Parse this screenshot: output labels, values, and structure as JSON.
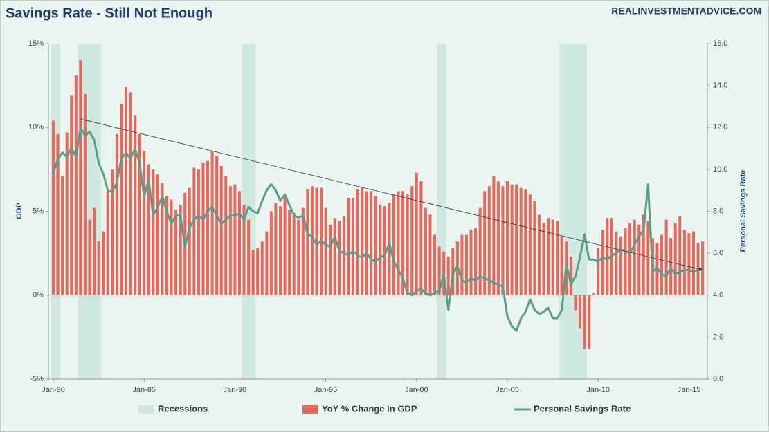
{
  "chart_data": {
    "type": "combo",
    "title": "Savings Rate - Still Not Enough",
    "source": "REALINVESTMENTADVICE.COM",
    "ylabel": "GDP",
    "y2label": "Personal Savings Rate",
    "categories": [
      "Jan-80",
      null,
      null,
      null,
      null,
      null,
      null,
      null,
      null,
      null,
      null,
      null,
      null,
      null,
      null,
      null,
      null,
      null,
      null,
      null,
      "Jan-85",
      null,
      null,
      null,
      null,
      null,
      null,
      null,
      null,
      null,
      null,
      null,
      null,
      null,
      null,
      null,
      null,
      null,
      null,
      null,
      "Jan-90",
      null,
      null,
      null,
      null,
      null,
      null,
      null,
      null,
      null,
      null,
      null,
      null,
      null,
      null,
      null,
      null,
      null,
      null,
      null,
      "Jan-95",
      null,
      null,
      null,
      null,
      null,
      null,
      null,
      null,
      null,
      null,
      null,
      null,
      null,
      null,
      null,
      null,
      null,
      null,
      null,
      "Jan-00",
      null,
      null,
      null,
      null,
      null,
      null,
      null,
      null,
      null,
      null,
      null,
      null,
      null,
      null,
      null,
      null,
      null,
      null,
      null,
      "Jan-05",
      null,
      null,
      null,
      null,
      null,
      null,
      null,
      null,
      null,
      null,
      null,
      null,
      null,
      null,
      null,
      null,
      null,
      null,
      null,
      "Jan-10",
      null,
      null,
      null,
      null,
      null,
      null,
      null,
      null,
      null,
      null,
      null,
      null,
      null,
      null,
      null,
      null,
      null,
      null,
      null,
      "Jan-15",
      null,
      null,
      null
    ],
    "series": [
      {
        "name": "Recessions",
        "type": "shade",
        "color": "#cfe9e1",
        "values": [
          1,
          1,
          0,
          0,
          0,
          0,
          1,
          1,
          1,
          1,
          1,
          0,
          0,
          0,
          0,
          0,
          0,
          0,
          0,
          0,
          0,
          0,
          0,
          0,
          0,
          0,
          0,
          0,
          0,
          0,
          0,
          0,
          0,
          0,
          0,
          0,
          0,
          0,
          0,
          0,
          0,
          0,
          1,
          1,
          1,
          0,
          0,
          0,
          0,
          0,
          0,
          0,
          0,
          0,
          0,
          0,
          0,
          0,
          0,
          0,
          0,
          0,
          0,
          0,
          0,
          0,
          0,
          0,
          0,
          0,
          0,
          0,
          0,
          0,
          0,
          0,
          0,
          0,
          0,
          0,
          0,
          0,
          0,
          0,
          0,
          1,
          1,
          0,
          0,
          0,
          0,
          0,
          0,
          0,
          0,
          0,
          0,
          0,
          0,
          0,
          0,
          0,
          0,
          0,
          0,
          0,
          0,
          0,
          0,
          0,
          0,
          0,
          1,
          1,
          1,
          1,
          1,
          1,
          0,
          0,
          0,
          0,
          0,
          0,
          0,
          0,
          0,
          0,
          0,
          0,
          0,
          0,
          0,
          0,
          0,
          0,
          0,
          0,
          0,
          0,
          0,
          0,
          0,
          0
        ]
      },
      {
        "name": "YoY % Change In GDP",
        "type": "bar",
        "axis": "y",
        "color": "#e8675a",
        "values": [
          10.4,
          9.6,
          7.1,
          9.7,
          11.9,
          13.1,
          14.0,
          12.0,
          4.5,
          5.2,
          3.2,
          3.8,
          6.2,
          7.5,
          9.6,
          11.4,
          12.4,
          12.1,
          10.7,
          9.6,
          8.6,
          7.8,
          7.5,
          7.2,
          6.7,
          5.9,
          5.7,
          5.1,
          5.4,
          6.1,
          6.4,
          7.6,
          7.5,
          7.9,
          8.0,
          8.6,
          8.3,
          7.7,
          7.1,
          6.5,
          6.6,
          6.2,
          5.4,
          4.5,
          2.7,
          2.8,
          3.2,
          3.8,
          5.0,
          5.5,
          5.3,
          6.0,
          5.1,
          4.9,
          4.5,
          5.2,
          6.3,
          6.5,
          6.4,
          6.4,
          5.2,
          4.2,
          4.6,
          4.4,
          4.7,
          5.8,
          5.8,
          6.3,
          6.4,
          6.2,
          6.2,
          5.9,
          5.4,
          5.3,
          5.5,
          6.0,
          6.2,
          6.2,
          6.0,
          6.5,
          7.3,
          6.8,
          5.2,
          4.8,
          3.6,
          2.9,
          2.6,
          2.3,
          2.8,
          3.2,
          3.6,
          3.6,
          3.9,
          4.0,
          5.2,
          6.2,
          6.5,
          7.1,
          6.8,
          6.5,
          6.8,
          6.6,
          6.6,
          6.4,
          6.3,
          6.0,
          5.6,
          4.8,
          4.3,
          4.6,
          4.5,
          4.4,
          3.5,
          3.2,
          2.3,
          -0.9,
          -2.0,
          -3.2,
          -3.2,
          0.1,
          2.8,
          3.9,
          4.6,
          4.6,
          3.8,
          3.5,
          4.0,
          4.3,
          4.5,
          4.2,
          4.8,
          4.4,
          3.4,
          3.1,
          3.6,
          4.5,
          3.4,
          4.3,
          4.7,
          3.9,
          3.7,
          3.8,
          3.1,
          3.2
        ]
      },
      {
        "name": "Personal Savings Rate",
        "type": "line",
        "axis": "y2",
        "color": "#5a9d8c",
        "values": [
          9.8,
          10.5,
          10.8,
          10.6,
          11.0,
          10.6,
          12.0,
          11.6,
          11.8,
          11.4,
          10.3,
          9.8,
          9.0,
          8.9,
          9.4,
          10.5,
          10.8,
          10.5,
          11.0,
          10.3,
          8.7,
          9.5,
          7.8,
          8.2,
          8.7,
          8.0,
          7.4,
          7.8,
          7.8,
          6.3,
          7.2,
          7.6,
          7.8,
          7.6,
          8.0,
          8.2,
          7.8,
          7.4,
          7.6,
          7.8,
          7.8,
          7.9,
          7.6,
          8.2,
          8.0,
          7.9,
          8.5,
          9.0,
          9.3,
          9.0,
          8.5,
          8.8,
          8.3,
          7.8,
          7.7,
          7.8,
          6.9,
          6.8,
          6.4,
          6.6,
          6.4,
          6.3,
          6.8,
          6.1,
          6.0,
          5.9,
          6.1,
          5.9,
          5.8,
          6.0,
          5.7,
          5.6,
          5.8,
          5.9,
          6.5,
          5.6,
          5.2,
          4.8,
          4.1,
          4.0,
          4.2,
          4.3,
          4.1,
          4.0,
          4.1,
          4.2,
          5.0,
          3.3,
          5.0,
          5.4,
          4.7,
          4.6,
          4.8,
          4.7,
          4.9,
          4.8,
          4.7,
          4.6,
          4.5,
          4.4,
          3.0,
          2.5,
          2.3,
          2.9,
          3.2,
          3.8,
          3.3,
          3.1,
          3.2,
          3.4,
          2.9,
          2.9,
          3.3,
          5.5,
          4.5,
          4.9,
          5.8,
          6.9,
          5.7,
          5.7,
          5.6,
          5.8,
          5.7,
          5.9,
          6.0,
          6.2,
          6.1,
          6.0,
          6.4,
          6.8,
          7.1,
          9.3,
          5.1,
          5.3,
          5.0,
          4.9,
          5.3,
          5.0,
          5.1,
          5.2,
          5.2,
          5.1,
          5.2,
          5.3
        ]
      }
    ],
    "trend_line": {
      "x": [
        6,
        143
      ],
      "values": [
        12.4,
        5.2
      ],
      "axis": "y2"
    },
    "ylim": [
      -5,
      15
    ],
    "yticks": [
      {
        "value": -5,
        "label": "-5%"
      },
      {
        "value": 0,
        "label": "0%"
      },
      {
        "value": 5,
        "label": "5%"
      },
      {
        "value": 10,
        "label": "10%"
      },
      {
        "value": 15,
        "label": "15%"
      }
    ],
    "y2lim": [
      0,
      16
    ],
    "y2ticks": [
      {
        "value": 0,
        "label": "0.0"
      },
      {
        "value": 2,
        "label": "2.0"
      },
      {
        "value": 4,
        "label": "4.0"
      },
      {
        "value": 6,
        "label": "6.0"
      },
      {
        "value": 8,
        "label": "8.0"
      },
      {
        "value": 10,
        "label": "10.0"
      },
      {
        "value": 12,
        "label": "12.0"
      },
      {
        "value": 14,
        "label": "14.0"
      },
      {
        "value": 16,
        "label": "16.0"
      }
    ],
    "grid": false,
    "legend": "bottom"
  }
}
